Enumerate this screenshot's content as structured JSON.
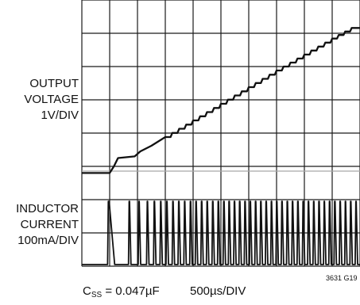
{
  "chart_data": {
    "type": "line",
    "grid": true,
    "grid_divisions": {
      "x": 10,
      "y": 8
    },
    "xlim": [
      0,
      10
    ],
    "ylim": [
      0,
      8
    ],
    "series": [
      {
        "name": "OUTPUT VOLTAGE 1V/DIV",
        "label_lines": [
          "OUTPUT",
          "VOLTAGE",
          "1V/DIV"
        ],
        "x": [
          0,
          1.0,
          1.15,
          1.3,
          1.9,
          2.1,
          2.5,
          3.0,
          4.0,
          5.0,
          6.0,
          7.0,
          8.0,
          9.0,
          9.7,
          10.0
        ],
        "y": [
          2.8,
          2.8,
          3.0,
          3.25,
          3.3,
          3.45,
          3.62,
          3.88,
          4.38,
          4.88,
          5.38,
          5.88,
          6.36,
          6.84,
          7.16,
          7.16
        ]
      },
      {
        "name": "INDUCTOR CURRENT 100mA/DIV",
        "label_lines": [
          "INDUCTOR",
          "CURRENT",
          "100mA/DIV"
        ],
        "baseline": 0.05,
        "pulse_peak": 1.95,
        "pulse_times": [
          0.95,
          1.7,
          2.05,
          2.35,
          2.6,
          2.83,
          3.05,
          3.27,
          3.48,
          3.69,
          3.9,
          4.1,
          4.3,
          4.5,
          4.7,
          4.9,
          5.1,
          5.29,
          5.48,
          5.67,
          5.86,
          6.05,
          6.24,
          6.43,
          6.62,
          6.81,
          7.0,
          7.19,
          7.38,
          7.57,
          7.76,
          7.95,
          8.14,
          8.33,
          8.52,
          8.71,
          8.9,
          9.09,
          9.28,
          9.47,
          9.66,
          9.85
        ]
      }
    ],
    "xlabel": "500µs/DIV",
    "condition": {
      "main": "C",
      "sub": "SS",
      "rest": " = 0.047µF"
    },
    "figure_code": "3631 G19"
  },
  "colors": {
    "grid": "#1a1a1a",
    "trace": "#111111",
    "background": "#ffffff",
    "separator": "#a6a6a6"
  }
}
